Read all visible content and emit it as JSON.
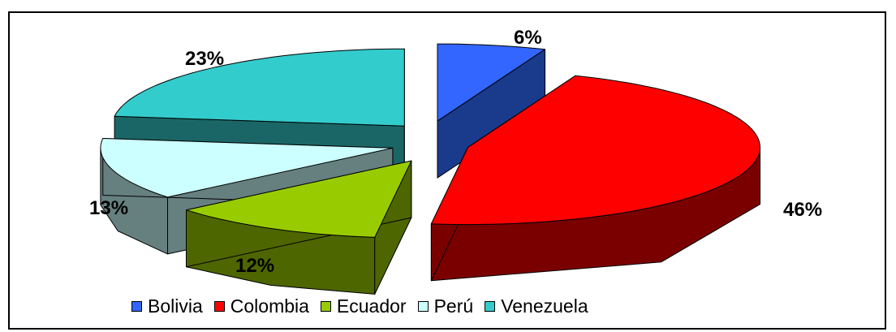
{
  "chart_data": {
    "type": "pie",
    "style": "3d-exploded",
    "title": "",
    "categories": [
      "Bolivia",
      "Colombia",
      "Ecuador",
      "Perú",
      "Venezuela"
    ],
    "values": [
      6,
      46,
      12,
      13,
      23
    ],
    "labels": [
      "6%",
      "46%",
      "12%",
      "13%",
      "23%"
    ],
    "colors": {
      "Bolivia": {
        "top": "#3366ff",
        "side": "#1a3a8c"
      },
      "Colombia": {
        "top": "#ff0000",
        "side": "#7a0000"
      },
      "Ecuador": {
        "top": "#99cc00",
        "side": "#4d6600"
      },
      "Perú": {
        "top": "#ccffff",
        "side": "#668080"
      },
      "Venezuela": {
        "top": "#33cccc",
        "side": "#1a6666"
      }
    },
    "legend": {
      "position": "bottom"
    }
  }
}
